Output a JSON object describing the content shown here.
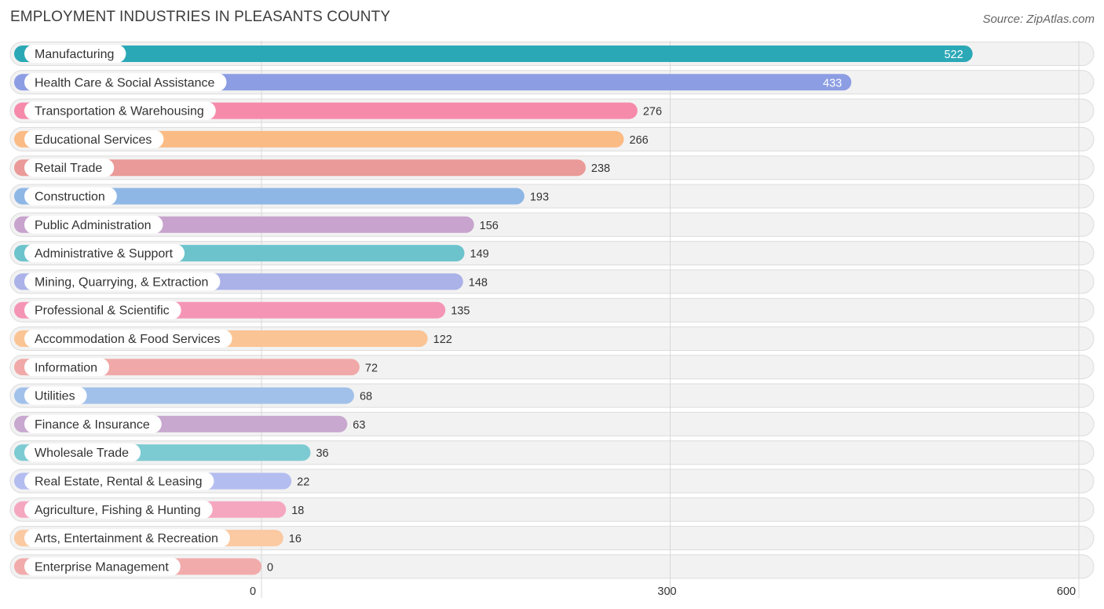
{
  "header": {
    "title": "EMPLOYMENT INDUSTRIES IN PLEASANTS COUNTY",
    "source": "Source: ZipAtlas.com"
  },
  "chart_data": {
    "type": "bar",
    "orientation": "horizontal",
    "title": "EMPLOYMENT INDUSTRIES IN PLEASANTS COUNTY",
    "xlabel": "",
    "ylabel": "",
    "xlim": [
      0,
      600
    ],
    "xticks": [
      0,
      300,
      600
    ],
    "xtick_labels": [
      "0",
      "300",
      "600"
    ],
    "grid": true,
    "categories": [
      "Manufacturing",
      "Health Care & Social Assistance",
      "Transportation & Warehousing",
      "Educational Services",
      "Retail Trade",
      "Construction",
      "Public Administration",
      "Administrative & Support",
      "Mining, Quarrying, & Extraction",
      "Professional & Scientific",
      "Accommodation & Food Services",
      "Information",
      "Utilities",
      "Finance & Insurance",
      "Wholesale Trade",
      "Real Estate, Rental & Leasing",
      "Agriculture, Fishing & Hunting",
      "Arts, Entertainment & Recreation",
      "Enterprise Management"
    ],
    "values": [
      522,
      433,
      276,
      266,
      238,
      193,
      156,
      149,
      148,
      135,
      122,
      72,
      68,
      63,
      36,
      22,
      18,
      16,
      0
    ],
    "value_labels": [
      "522",
      "433",
      "276",
      "266",
      "238",
      "193",
      "156",
      "149",
      "148",
      "135",
      "122",
      "72",
      "68",
      "63",
      "36",
      "22",
      "18",
      "16",
      "0"
    ],
    "colors": [
      "#2ba8b6",
      "#8c9de3",
      "#f68aab",
      "#fbbb84",
      "#ea9a98",
      "#8fb7e6",
      "#c7a3cd",
      "#6cc3cc",
      "#aab2e8",
      "#f595b6",
      "#fbc494",
      "#f0a9a8",
      "#a2c1ea",
      "#c8a8cf",
      "#7dcbd2",
      "#b4bdef",
      "#f5a7c0",
      "#fbc9a2",
      "#f2abab"
    ]
  }
}
